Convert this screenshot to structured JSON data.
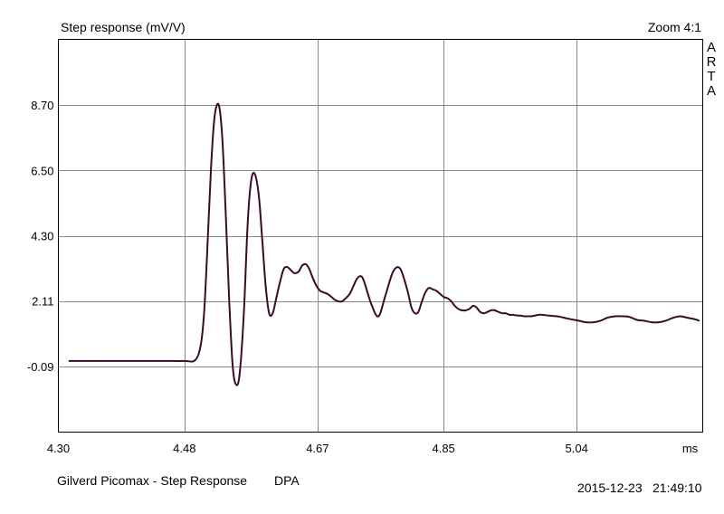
{
  "header": {
    "title": "Step response (mV/V)",
    "zoom": "Zoom 4:1",
    "brand_letters": [
      "A",
      "R",
      "T",
      "A"
    ]
  },
  "footer": {
    "description": "Gilverd Picomax - Step Response",
    "mic": "DPA",
    "date": "2015-12-23",
    "time": "21:49:10"
  },
  "colors": {
    "trace": "#3a0a2a",
    "grid": "#8a8a8a",
    "frame": "#000000",
    "background": "#ffffff"
  },
  "chart_data": {
    "type": "line",
    "title": "Step response (mV/V)",
    "xlabel": "ms",
    "ylabel": "",
    "x_ticks": [
      "4.30",
      "4.48",
      "4.67",
      "4.85",
      "5.04",
      "ms"
    ],
    "y_ticks": [
      "8.70",
      "6.50",
      "4.30",
      "2.11",
      "-0.09"
    ],
    "xlim": [
      4.3,
      5.22
    ],
    "ylim": [
      -2.29,
      10.9
    ],
    "grid": true,
    "series": [
      {
        "values_x": [
          4.315,
          4.35,
          4.4,
          4.45,
          4.48,
          4.495,
          4.503,
          4.508,
          4.513,
          4.518,
          4.523,
          4.529,
          4.534,
          4.539,
          4.544,
          4.549,
          4.554,
          4.559,
          4.565,
          4.57,
          4.575,
          4.58,
          4.586,
          4.591,
          4.596,
          4.601,
          4.606,
          4.611,
          4.617,
          4.622,
          4.627,
          4.632,
          4.637,
          4.643,
          4.648,
          4.653,
          4.658,
          4.663,
          4.669,
          4.674,
          4.679,
          4.684,
          4.69,
          4.695,
          4.7,
          4.705,
          4.71,
          4.716,
          4.721,
          4.726,
          4.731,
          4.736,
          4.747,
          4.757,
          4.767,
          4.778,
          4.788,
          4.798,
          4.804,
          4.809,
          4.814,
          4.819,
          4.824,
          4.829,
          4.835,
          4.84,
          4.845,
          4.85,
          4.856,
          4.861,
          4.866,
          4.871,
          4.876,
          4.882,
          4.887,
          4.892,
          4.897,
          4.902,
          4.908,
          4.913,
          4.918,
          4.923,
          4.928,
          4.934,
          4.939,
          4.944,
          4.949,
          4.954,
          4.96,
          4.965,
          4.97,
          4.975,
          4.98,
          4.986,
          4.991,
          5.001,
          5.012,
          5.022,
          5.032,
          5.043,
          5.053,
          5.064,
          5.074,
          5.084,
          5.095,
          5.105,
          5.115,
          5.126,
          5.136,
          5.147,
          5.157,
          5.167,
          5.178,
          5.188,
          5.198,
          5.209,
          5.215
        ],
        "values_y": [
          0.1,
          0.1,
          0.1,
          0.1,
          0.1,
          0.12,
          0.6,
          1.7,
          4.0,
          6.6,
          8.3,
          8.7,
          7.6,
          5.0,
          2.1,
          -0.1,
          -0.7,
          -0.3,
          1.8,
          4.6,
          6.1,
          6.4,
          5.7,
          4.2,
          2.6,
          1.7,
          1.7,
          2.2,
          2.8,
          3.2,
          3.25,
          3.15,
          3.05,
          3.1,
          3.3,
          3.35,
          3.2,
          2.9,
          2.6,
          2.45,
          2.4,
          2.35,
          2.25,
          2.15,
          2.1,
          2.1,
          2.2,
          2.35,
          2.6,
          2.85,
          2.95,
          2.8,
          2.0,
          1.6,
          2.3,
          3.1,
          3.2,
          2.5,
          1.9,
          1.7,
          1.75,
          2.1,
          2.4,
          2.55,
          2.5,
          2.45,
          2.35,
          2.25,
          2.2,
          2.1,
          1.95,
          1.85,
          1.8,
          1.8,
          1.85,
          1.95,
          1.9,
          1.75,
          1.7,
          1.75,
          1.8,
          1.8,
          1.75,
          1.7,
          1.7,
          1.65,
          1.65,
          1.63,
          1.62,
          1.6,
          1.6,
          1.6,
          1.62,
          1.65,
          1.65,
          1.62,
          1.6,
          1.55,
          1.5,
          1.45,
          1.4,
          1.4,
          1.45,
          1.55,
          1.6,
          1.6,
          1.58,
          1.48,
          1.45,
          1.4,
          1.4,
          1.45,
          1.55,
          1.6,
          1.55,
          1.5,
          1.45
        ]
      }
    ]
  }
}
